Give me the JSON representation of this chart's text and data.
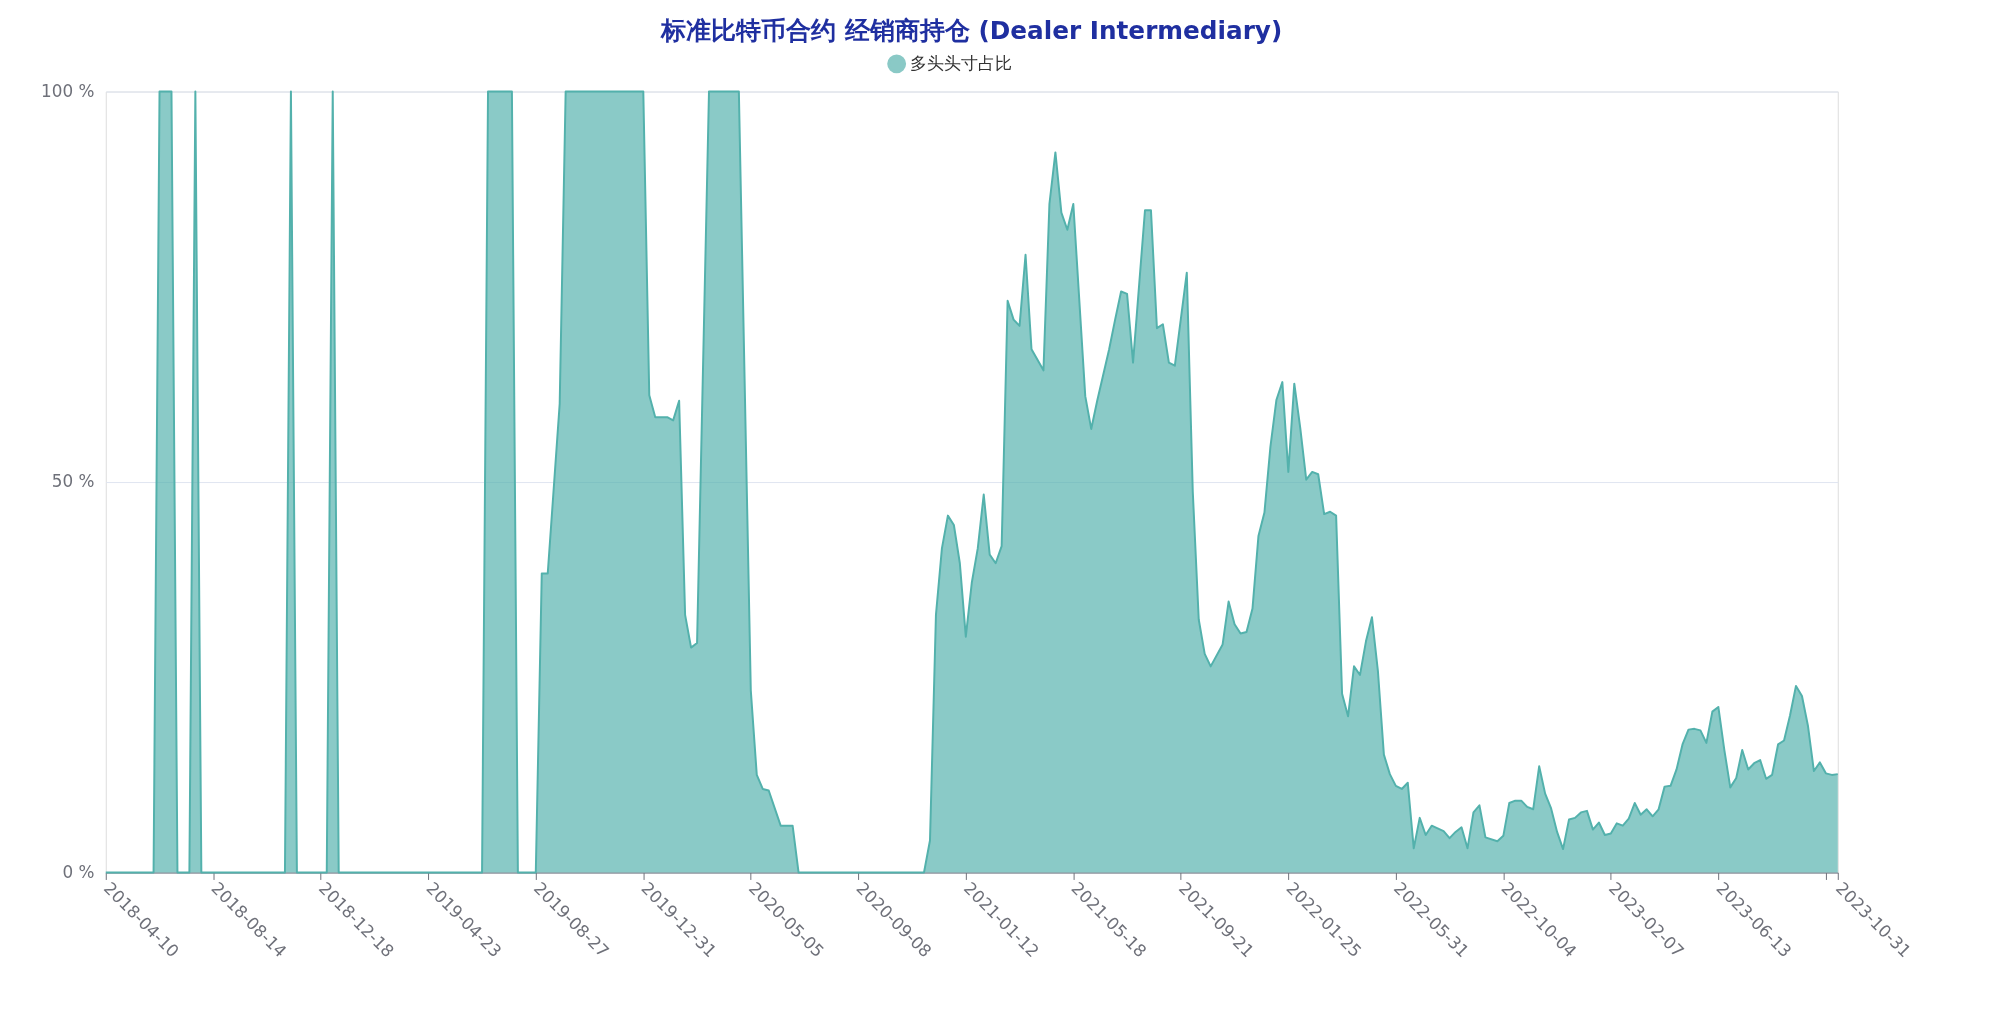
{
  "chart_data": {
    "type": "area",
    "title": "标准比特币合约 经销商持仓 (Dealer Intermediary)",
    "x": [
      "2018-04-10",
      "2018-06-05",
      "2018-06-12",
      "2018-06-26",
      "2018-07-03",
      "2018-07-17",
      "2018-07-24",
      "2018-07-31",
      "2018-11-06",
      "2018-11-13",
      "2018-11-20",
      "2018-12-25",
      "2019-01-01",
      "2019-01-08",
      "2019-06-25",
      "2019-07-02",
      "2019-07-30",
      "2019-08-06",
      "2019-08-27",
      "2019-09-03",
      "2019-09-10",
      "2019-09-24",
      "2019-10-01",
      "2019-12-31",
      "2020-01-07",
      "2020-01-14",
      "2020-01-28",
      "2020-02-04",
      "2020-02-11",
      "2020-02-18",
      "2020-02-25",
      "2020-03-03",
      "2020-03-17",
      "2020-04-21",
      "2020-05-05",
      "2020-05-12",
      "2020-05-19",
      "2020-05-26",
      "2020-06-09",
      "2020-06-23",
      "2020-06-30",
      "2020-11-24",
      "2020-12-01",
      "2020-12-08",
      "2020-12-15",
      "2020-12-22",
      "2020-12-29",
      "2021-01-05",
      "2021-01-12",
      "2021-01-19",
      "2021-01-26",
      "2021-02-02",
      "2021-02-09",
      "2021-02-16",
      "2021-02-23",
      "2021-03-02",
      "2021-03-09",
      "2021-03-16",
      "2021-03-23",
      "2021-03-30",
      "2021-04-13",
      "2021-04-20",
      "2021-04-27",
      "2021-05-04",
      "2021-05-11",
      "2021-05-18",
      "2021-06-01",
      "2021-06-08",
      "2021-06-15",
      "2021-06-29",
      "2021-07-06",
      "2021-07-13",
      "2021-07-20",
      "2021-07-27",
      "2021-08-10",
      "2021-08-17",
      "2021-08-24",
      "2021-08-31",
      "2021-09-07",
      "2021-09-14",
      "2021-09-28",
      "2021-10-05",
      "2021-10-12",
      "2021-10-19",
      "2021-10-26",
      "2021-11-09",
      "2021-11-16",
      "2021-11-23",
      "2021-11-30",
      "2021-12-07",
      "2021-12-14",
      "2021-12-21",
      "2021-12-28",
      "2022-01-04",
      "2022-01-11",
      "2022-01-18",
      "2022-01-25",
      "2022-02-01",
      "2022-02-08",
      "2022-02-15",
      "2022-02-22",
      "2022-03-01",
      "2022-03-08",
      "2022-03-15",
      "2022-03-22",
      "2022-03-29",
      "2022-04-05",
      "2022-04-12",
      "2022-04-19",
      "2022-04-26",
      "2022-05-03",
      "2022-05-10",
      "2022-05-17",
      "2022-05-24",
      "2022-05-31",
      "2022-06-07",
      "2022-06-14",
      "2022-06-21",
      "2022-06-28",
      "2022-07-05",
      "2022-07-12",
      "2022-07-26",
      "2022-08-02",
      "2022-08-09",
      "2022-08-16",
      "2022-08-23",
      "2022-08-30",
      "2022-09-06",
      "2022-09-13",
      "2022-09-27",
      "2022-10-04",
      "2022-10-11",
      "2022-10-18",
      "2022-10-25",
      "2022-11-01",
      "2022-11-08",
      "2022-11-15",
      "2022-11-22",
      "2022-11-29",
      "2022-12-06",
      "2022-12-13",
      "2022-12-20",
      "2022-12-27",
      "2023-01-03",
      "2023-01-10",
      "2023-01-17",
      "2023-01-24",
      "2023-01-31",
      "2023-02-07",
      "2023-02-14",
      "2023-02-21",
      "2023-02-28",
      "2023-03-07",
      "2023-03-14",
      "2023-03-21",
      "2023-03-28",
      "2023-04-04",
      "2023-04-11",
      "2023-04-18",
      "2023-04-25",
      "2023-05-02",
      "2023-05-09",
      "2023-05-16",
      "2023-05-23",
      "2023-05-30",
      "2023-06-06",
      "2023-06-13",
      "2023-06-20",
      "2023-06-27",
      "2023-07-04",
      "2023-07-11",
      "2023-07-18",
      "2023-07-25",
      "2023-08-01",
      "2023-08-08",
      "2023-08-15",
      "2023-08-22",
      "2023-08-29",
      "2023-09-05",
      "2023-09-12",
      "2023-09-19",
      "2023-09-26",
      "2023-10-03",
      "2023-10-10",
      "2023-10-17",
      "2023-10-24",
      "2023-10-31"
    ],
    "series": [
      {
        "name": "多头头寸占比",
        "color": "#53b1ac",
        "values": [
          0,
          0,
          100,
          100,
          0,
          0,
          100,
          0,
          0,
          100,
          0,
          0,
          100,
          0,
          0,
          100,
          100,
          0,
          0,
          38.3,
          38.3,
          60,
          100,
          100,
          61.1,
          58.3,
          58.3,
          57.9,
          60.4,
          33.0,
          28.8,
          29.4,
          100,
          100,
          23.3,
          12.5,
          10.7,
          10.5,
          6,
          6,
          0,
          0,
          4.1,
          33,
          41.5,
          45.7,
          44.5,
          39.6,
          30.2,
          37.1,
          41.5,
          48.4,
          40.7,
          39.6,
          41.8,
          73.2,
          70.8,
          70,
          79.1,
          67,
          64.3,
          85.6,
          92.2,
          84.5,
          82.3,
          85.6,
          61,
          56.8,
          60.4,
          67,
          70.8,
          74.4,
          74.1,
          65.3,
          84.8,
          84.8,
          69.7,
          70.2,
          65.3,
          64.9,
          76.8,
          48.8,
          32.4,
          28,
          26.4,
          29.2,
          34.7,
          31.8,
          30.6,
          30.8,
          33.8,
          43.1,
          46.1,
          54.5,
          60.5,
          62.8,
          51.3,
          62.6,
          56.9,
          50.3,
          51.3,
          51,
          45.9,
          46.2,
          45.7,
          22.9,
          20,
          26.4,
          25.3,
          29.6,
          32.7,
          25.8,
          15.1,
          12.6,
          11.1,
          10.7,
          11.5,
          3.1,
          7.0,
          4.8,
          6.0,
          5.3,
          4.4,
          5.2,
          5.8,
          3.1,
          7.7,
          8.6,
          4.5,
          4.0,
          4.7,
          8.9,
          9.2,
          9.2,
          8.4,
          8.1,
          13.6,
          10.1,
          8.2,
          5.2,
          3.0,
          6.8,
          7.0,
          7.7,
          7.9,
          5.5,
          6.4,
          4.8,
          5.0,
          6.3,
          6.0,
          6.9,
          8.9,
          7.4,
          8.1,
          7.2,
          8.1,
          11.0,
          11.1,
          13.2,
          16.4,
          18.3,
          18.4,
          18.2,
          16.6,
          20.6,
          21.2,
          15.7,
          10.9,
          12.1,
          15.7,
          13.2,
          14.0,
          14.4,
          12.0,
          12.5,
          16.4,
          16.9,
          20.1,
          23.9,
          22.6,
          18.8,
          13.0,
          14.1,
          12.7,
          12.5,
          12.6
        ]
      }
    ],
    "xlim": [
      "2018-04-10",
      "2023-10-31"
    ],
    "xticks": [
      "2018-04-10",
      "2018-08-14",
      "2018-12-18",
      "2019-04-23",
      "2019-08-27",
      "2019-12-31",
      "2020-05-05",
      "2020-09-08",
      "2021-01-12",
      "2021-05-18",
      "2021-09-21",
      "2022-01-25",
      "2022-05-31",
      "2022-10-04",
      "2023-02-07",
      "2023-06-13",
      {
        "value": "2023-10-17",
        "label": null
      },
      "2023-10-31"
    ],
    "ylim": [
      0,
      100
    ],
    "yticks": [
      {
        "value": 0,
        "label": "0 %"
      },
      {
        "value": 50,
        "label": "50 %"
      },
      {
        "value": 100,
        "label": "100 %"
      }
    ],
    "grid": "y",
    "legend": "top"
  }
}
